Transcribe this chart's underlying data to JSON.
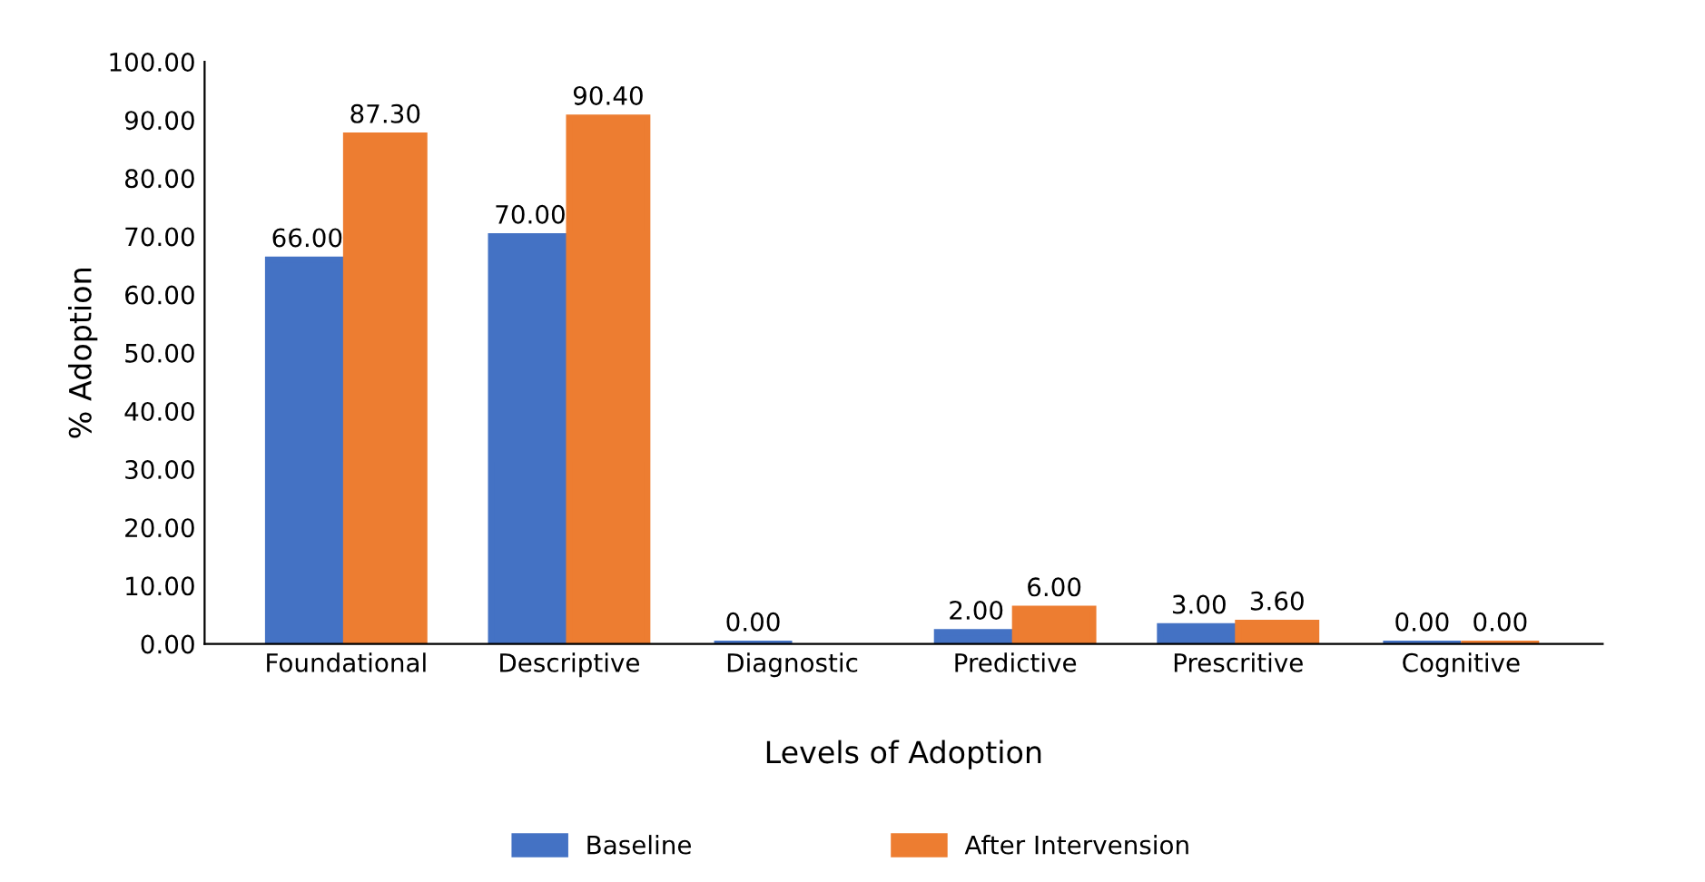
{
  "chart_data": {
    "type": "bar",
    "xlabel": "Levels of Adoption",
    "ylabel": "% Adoption",
    "categories": [
      "Foundational",
      "Descriptive",
      "Diagnostic",
      "Predictive",
      "Prescritive",
      "Cognitive"
    ],
    "series": [
      {
        "name": "Baseline",
        "color": "#4472c4",
        "values": [
          66.0,
          70.0,
          0.0,
          2.0,
          3.0,
          0.0
        ],
        "value_labels": [
          "66.00",
          "70.00",
          "0.00",
          "2.00",
          "3.00",
          "0.00"
        ]
      },
      {
        "name": "After Intervension",
        "color": "#ed7d31",
        "values": [
          87.3,
          90.4,
          null,
          6.0,
          3.6,
          0.0
        ],
        "value_labels": [
          "87.30",
          "90.40",
          null,
          "6.00",
          "3.60",
          "0.00"
        ]
      }
    ],
    "ylim": [
      0,
      100
    ],
    "yticks": [
      {
        "value": 0,
        "label": "0.00"
      },
      {
        "value": 10,
        "label": "10.00"
      },
      {
        "value": 20,
        "label": "20.00"
      },
      {
        "value": 30,
        "label": "30.00"
      },
      {
        "value": 40,
        "label": "40.00"
      },
      {
        "value": 50,
        "label": "50.00"
      },
      {
        "value": 60,
        "label": "60.00"
      },
      {
        "value": 70,
        "label": "70.00"
      },
      {
        "value": 80,
        "label": "80.00"
      },
      {
        "value": 90,
        "label": "90.00"
      },
      {
        "value": 100,
        "label": "100.00"
      }
    ],
    "grid": false,
    "legend": "bottom"
  }
}
